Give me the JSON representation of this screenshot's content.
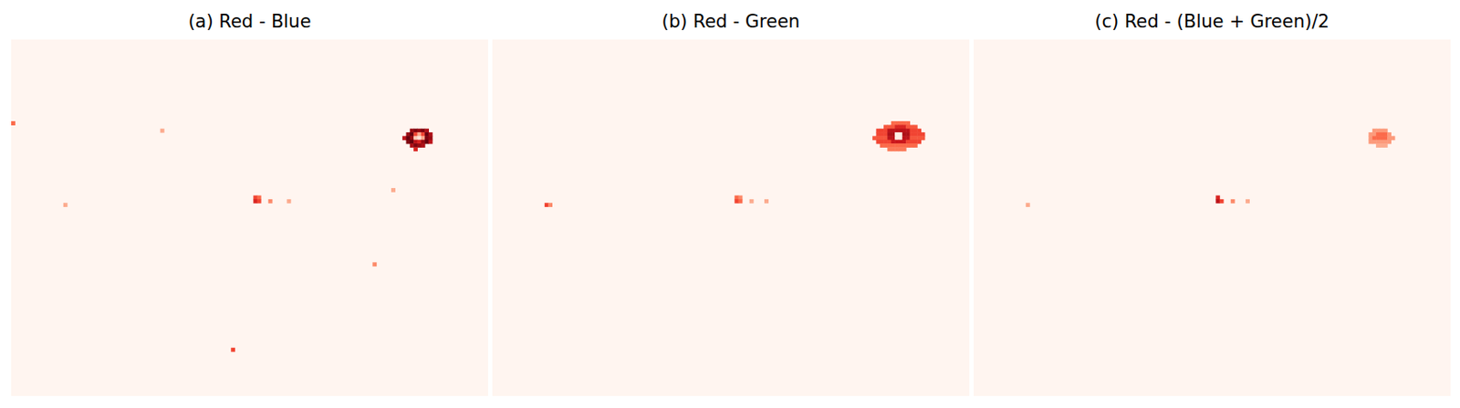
{
  "chart_data": [
    {
      "type": "heatmap",
      "title": "(a) Red - Blue",
      "xlim": [
        0,
        512
      ],
      "ylim": [
        0,
        384
      ],
      "color_range": [
        0,
        1
      ],
      "tick_labels": false,
      "cells": [
        [
          428,
          96,
          0.9
        ],
        [
          432,
          96,
          0.95
        ],
        [
          436,
          96,
          0.9
        ],
        [
          440,
          96,
          0.95
        ],
        [
          444,
          96,
          0.85
        ],
        [
          424,
          100,
          0.9
        ],
        [
          428,
          100,
          1
        ],
        [
          432,
          100,
          0.6
        ],
        [
          436,
          100,
          0.3
        ],
        [
          440,
          100,
          0.6
        ],
        [
          444,
          100,
          1
        ],
        [
          448,
          100,
          0.85
        ],
        [
          420,
          104,
          0.8
        ],
        [
          424,
          104,
          1
        ],
        [
          428,
          104,
          0.9
        ],
        [
          432,
          104,
          0.2
        ],
        [
          436,
          104,
          0.1
        ],
        [
          440,
          104,
          0.3
        ],
        [
          444,
          104,
          0.95
        ],
        [
          448,
          104,
          0.9
        ],
        [
          424,
          108,
          0.95
        ],
        [
          428,
          108,
          1
        ],
        [
          432,
          108,
          0.8
        ],
        [
          436,
          108,
          0.7
        ],
        [
          440,
          108,
          0.9
        ],
        [
          444,
          108,
          1
        ],
        [
          448,
          108,
          0.8
        ],
        [
          428,
          112,
          0.85
        ],
        [
          432,
          112,
          0.95
        ],
        [
          436,
          112,
          0.9
        ],
        [
          440,
          112,
          0.85
        ],
        [
          432,
          116,
          0.7
        ],
        [
          260,
          168,
          0.6
        ],
        [
          264,
          168,
          0.5
        ],
        [
          260,
          172,
          0.7
        ],
        [
          264,
          172,
          0.6
        ],
        [
          276,
          172,
          0.4
        ],
        [
          296,
          172,
          0.3
        ],
        [
          0,
          88,
          0.5
        ],
        [
          160,
          96,
          0.3
        ],
        [
          56,
          176,
          0.3
        ],
        [
          408,
          160,
          0.3
        ],
        [
          388,
          240,
          0.4
        ],
        [
          236,
          332,
          0.6
        ]
      ]
    },
    {
      "type": "heatmap",
      "title": "(b) Red - Green",
      "xlim": [
        0,
        512
      ],
      "ylim": [
        0,
        384
      ],
      "color_range": [
        0,
        1
      ],
      "tick_labels": false,
      "cells": [
        [
          428,
          88,
          0.5
        ],
        [
          432,
          88,
          0.5
        ],
        [
          436,
          88,
          0.5
        ],
        [
          440,
          88,
          0.5
        ],
        [
          444,
          88,
          0.5
        ],
        [
          420,
          92,
          0.55
        ],
        [
          424,
          92,
          0.55
        ],
        [
          428,
          92,
          0.55
        ],
        [
          432,
          92,
          0.7
        ],
        [
          436,
          92,
          0.7
        ],
        [
          440,
          92,
          0.7
        ],
        [
          444,
          92,
          0.55
        ],
        [
          448,
          92,
          0.55
        ],
        [
          452,
          92,
          0.55
        ],
        [
          412,
          96,
          0.6
        ],
        [
          416,
          96,
          0.6
        ],
        [
          420,
          96,
          0.6
        ],
        [
          424,
          96,
          0.8
        ],
        [
          428,
          96,
          0.8
        ],
        [
          432,
          96,
          0.8
        ],
        [
          436,
          96,
          0.8
        ],
        [
          440,
          96,
          0.8
        ],
        [
          444,
          96,
          0.8
        ],
        [
          448,
          96,
          0.6
        ],
        [
          452,
          96,
          0.6
        ],
        [
          456,
          96,
          0.6
        ],
        [
          412,
          100,
          0.6
        ],
        [
          416,
          100,
          0.6
        ],
        [
          420,
          100,
          0.6
        ],
        [
          424,
          100,
          0.85
        ],
        [
          428,
          100,
          0.85
        ],
        [
          432,
          100,
          0.05
        ],
        [
          436,
          100,
          0.05
        ],
        [
          440,
          100,
          0.85
        ],
        [
          444,
          100,
          0.85
        ],
        [
          448,
          100,
          0.6
        ],
        [
          452,
          100,
          0.6
        ],
        [
          456,
          100,
          0.6
        ],
        [
          460,
          100,
          0.6
        ],
        [
          408,
          104,
          0.55
        ],
        [
          412,
          104,
          0.55
        ],
        [
          416,
          104,
          0.55
        ],
        [
          420,
          104,
          0.55
        ],
        [
          424,
          104,
          0.8
        ],
        [
          428,
          104,
          0.8
        ],
        [
          432,
          104,
          0.05
        ],
        [
          436,
          104,
          0.05
        ],
        [
          440,
          104,
          0.8
        ],
        [
          444,
          104,
          0.8
        ],
        [
          448,
          104,
          0.55
        ],
        [
          452,
          104,
          0.55
        ],
        [
          456,
          104,
          0.55
        ],
        [
          460,
          104,
          0.55
        ],
        [
          412,
          108,
          0.6
        ],
        [
          416,
          108,
          0.6
        ],
        [
          420,
          108,
          0.6
        ],
        [
          424,
          108,
          0.6
        ],
        [
          428,
          108,
          0.75
        ],
        [
          432,
          108,
          0.75
        ],
        [
          436,
          108,
          0.75
        ],
        [
          440,
          108,
          0.75
        ],
        [
          444,
          108,
          0.6
        ],
        [
          448,
          108,
          0.6
        ],
        [
          452,
          108,
          0.6
        ],
        [
          456,
          108,
          0.6
        ],
        [
          416,
          112,
          0.5
        ],
        [
          420,
          112,
          0.5
        ],
        [
          424,
          112,
          0.5
        ],
        [
          428,
          112,
          0.5
        ],
        [
          432,
          112,
          0.5
        ],
        [
          436,
          112,
          0.5
        ],
        [
          440,
          112,
          0.5
        ],
        [
          444,
          112,
          0.5
        ],
        [
          448,
          112,
          0.5
        ],
        [
          452,
          112,
          0.5
        ],
        [
          424,
          116,
          0.45
        ],
        [
          428,
          116,
          0.45
        ],
        [
          432,
          116,
          0.45
        ],
        [
          436,
          116,
          0.45
        ],
        [
          440,
          116,
          0.45
        ],
        [
          260,
          168,
          0.5
        ],
        [
          264,
          168,
          0.4
        ],
        [
          260,
          172,
          0.6
        ],
        [
          264,
          172,
          0.5
        ],
        [
          276,
          172,
          0.3
        ],
        [
          292,
          172,
          0.3
        ],
        [
          56,
          176,
          0.6
        ],
        [
          60,
          176,
          0.4
        ]
      ]
    },
    {
      "type": "heatmap",
      "title": "(c) Red - (Blue + Green)/2",
      "xlim": [
        0,
        512
      ],
      "ylim": [
        0,
        384
      ],
      "color_range": [
        0,
        1
      ],
      "tick_labels": false,
      "cells": [
        [
          428,
          96,
          0.35
        ],
        [
          432,
          96,
          0.35
        ],
        [
          436,
          96,
          0.35
        ],
        [
          440,
          96,
          0.35
        ],
        [
          424,
          100,
          0.35
        ],
        [
          428,
          100,
          0.35
        ],
        [
          432,
          100,
          0.5
        ],
        [
          436,
          100,
          0.5
        ],
        [
          440,
          100,
          0.5
        ],
        [
          444,
          100,
          0.35
        ],
        [
          424,
          104,
          0.35
        ],
        [
          428,
          104,
          0.5
        ],
        [
          432,
          104,
          0.5
        ],
        [
          436,
          104,
          0.5
        ],
        [
          440,
          104,
          0.5
        ],
        [
          444,
          104,
          0.35
        ],
        [
          448,
          104,
          0.35
        ],
        [
          424,
          108,
          0.35
        ],
        [
          428,
          108,
          0.35
        ],
        [
          432,
          108,
          0.35
        ],
        [
          436,
          108,
          0.35
        ],
        [
          440,
          108,
          0.35
        ],
        [
          444,
          108,
          0.35
        ],
        [
          432,
          112,
          0.3
        ],
        [
          436,
          112,
          0.3
        ],
        [
          440,
          112,
          0.3
        ],
        [
          260,
          168,
          0.7
        ],
        [
          260,
          172,
          0.8
        ],
        [
          264,
          172,
          0.6
        ],
        [
          276,
          172,
          0.4
        ],
        [
          292,
          172,
          0.3
        ],
        [
          56,
          176,
          0.3
        ]
      ]
    }
  ]
}
